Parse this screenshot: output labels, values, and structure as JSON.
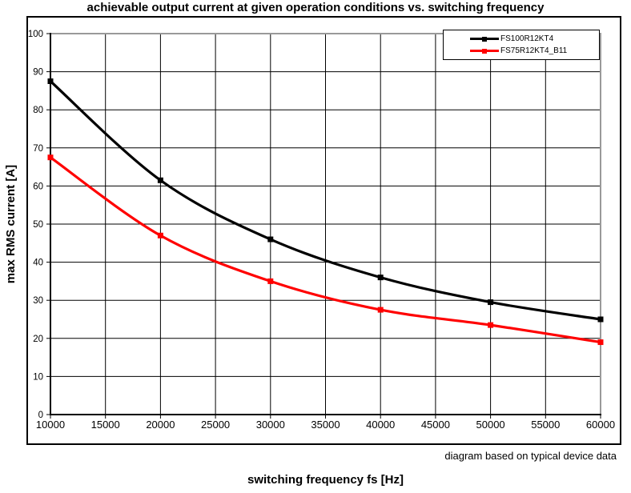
{
  "chart_data": {
    "type": "line",
    "title": "achievable output current at given operation conditions vs. switching frequency",
    "xlabel": "switching frequency fs [Hz]",
    "ylabel": "max RMS current [A]",
    "annotation": "diagram based on typical device data",
    "xlim": [
      10000,
      60000
    ],
    "ylim": [
      0,
      100
    ],
    "x_ticks": [
      10000,
      15000,
      20000,
      25000,
      30000,
      35000,
      40000,
      45000,
      50000,
      55000,
      60000
    ],
    "y_ticks": [
      0,
      10,
      20,
      30,
      40,
      50,
      60,
      70,
      80,
      90,
      100
    ],
    "grid": true,
    "line_style": "smooth",
    "legend_position": "top-right-inside",
    "x": [
      10000,
      20000,
      30000,
      40000,
      50000,
      60000
    ],
    "series": [
      {
        "name": "FS100R12KT4",
        "color": "#000000",
        "marker": "square",
        "values": [
          87.5,
          61.5,
          46,
          36,
          29.5,
          25
        ]
      },
      {
        "name": "FS75R12KT4_B11",
        "color": "#ff0000",
        "marker": "square",
        "values": [
          67.5,
          47,
          35,
          27.5,
          23.5,
          19
        ]
      }
    ],
    "colors": {
      "axis": "#000000",
      "gridline": "#000000",
      "plot_border": "#999999",
      "background": "#ffffff"
    }
  }
}
